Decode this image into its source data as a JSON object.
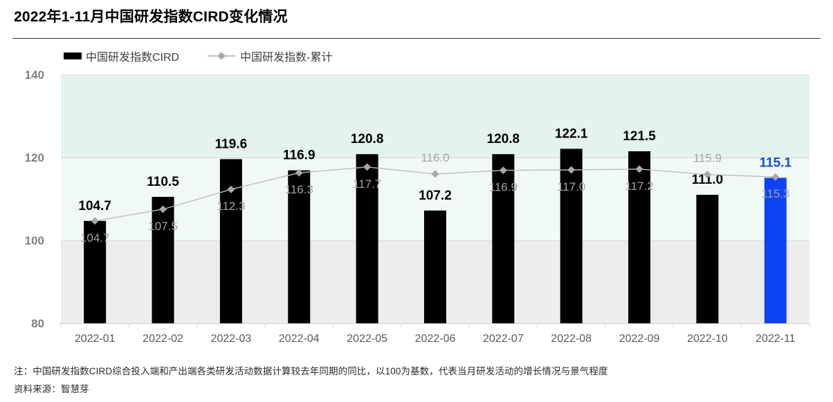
{
  "title": "2022年1-11月中国研发指数CIRD变化情况",
  "chart_data": {
    "type": "bar",
    "title": "2022年1-11月中国研发指数CIRD变化情况",
    "categories": [
      "2022-01",
      "2022-02",
      "2022-03",
      "2022-04",
      "2022-05",
      "2022-06",
      "2022-07",
      "2022-08",
      "2022-09",
      "2022-10",
      "2022-11"
    ],
    "series": [
      {
        "name": "中国研发指数CIRD",
        "type": "bar",
        "values": [
          104.7,
          110.5,
          119.6,
          116.9,
          120.8,
          107.2,
          120.8,
          122.1,
          121.5,
          111.0,
          115.1
        ]
      },
      {
        "name": "中国研发指数-累计",
        "type": "line",
        "values": [
          104.7,
          107.5,
          112.3,
          116.3,
          117.7,
          116.0,
          116.9,
          117.0,
          117.2,
          115.9,
          115.3
        ],
        "label_side": [
          "below",
          "below",
          "below",
          "below",
          "below",
          "above",
          "below",
          "below",
          "below",
          "above",
          "below"
        ]
      }
    ],
    "ylim": [
      80,
      140
    ],
    "yticks": [
      80,
      100,
      120,
      140
    ],
    "grid": true,
    "legend_position": "top-left",
    "highlight_index": 10,
    "bands": [
      {
        "from": 120,
        "to": 140,
        "color": "#e4f4ec"
      },
      {
        "from": 100,
        "to": 120,
        "color": "#f1f9f5"
      },
      {
        "from": 80,
        "to": 100,
        "color": "#ededed"
      }
    ],
    "colors": {
      "bar": "#000000",
      "bar_highlight": "#0e43f5",
      "bar_label": "#000000",
      "bar_label_highlight": "#1448e0",
      "line": "#bdbdbd",
      "marker": "#a8a8a8",
      "line_label": "#a3a3a3",
      "grid_line": "#d9d9d9",
      "axis_line": "#cfcfcf",
      "x_tick_label": "#595959",
      "y_tick_label": "#7f7f7f"
    }
  },
  "notes": {
    "note": "注：中国研发指数CIRD综合投入端和产出端各类研发活动数据计算较去年同期的同比，以100为基数，代表当月研发活动的增长情况与景气程度",
    "source": "资料来源：智慧芽"
  }
}
